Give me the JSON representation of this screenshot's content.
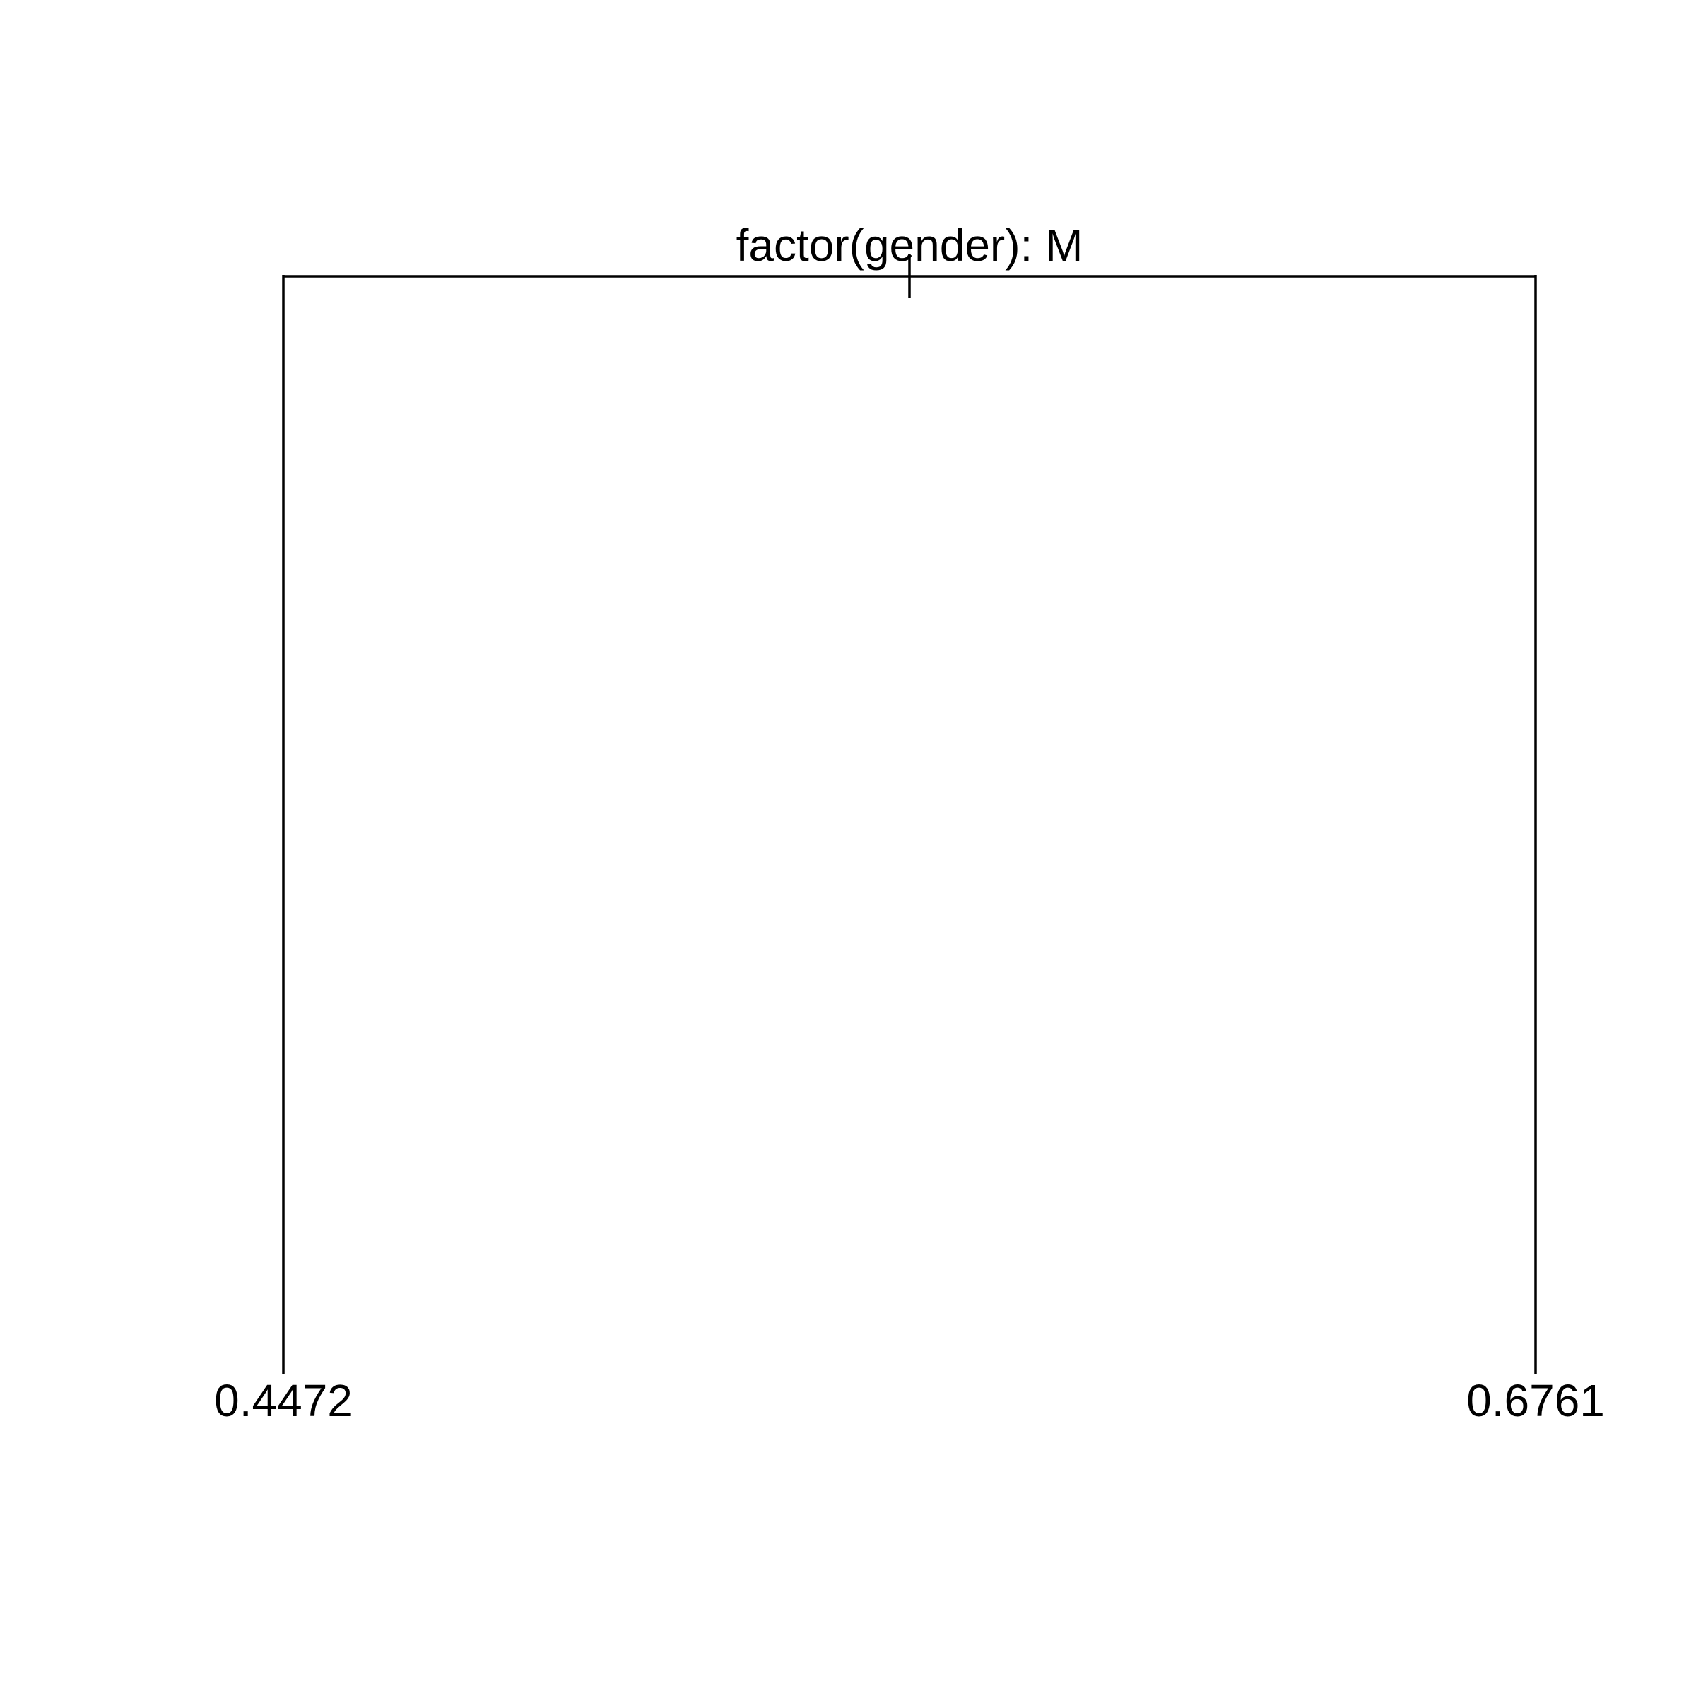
{
  "tree": {
    "root": {
      "split_label": "factor(gender): M",
      "children": [
        {
          "side": "left",
          "leaf_value": "0.4472"
        },
        {
          "side": "right",
          "leaf_value": "0.6761"
        }
      ]
    },
    "line_color": "#000000",
    "background_color": "#ffffff"
  }
}
